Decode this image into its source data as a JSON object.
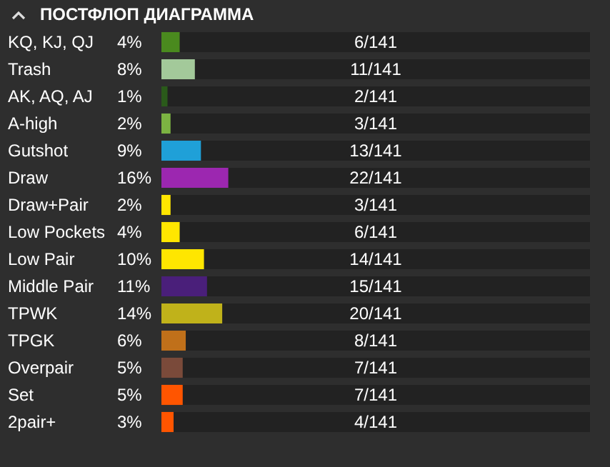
{
  "chart_data": {
    "type": "bar",
    "orientation": "horizontal",
    "title": "ПОСТФЛОП ДИАГРАММА",
    "categories": [
      "KQ, KJ, QJ",
      "Trash",
      "AK, AQ, AJ",
      "A-high",
      "Gutshot",
      "Draw",
      "Draw+Pair",
      "Low Pockets",
      "Low Pair",
      "Middle Pair",
      "TPWK",
      "TPGK",
      "Overpair",
      "Set",
      "2pair+"
    ],
    "values": [
      6,
      11,
      2,
      3,
      13,
      22,
      3,
      6,
      14,
      15,
      20,
      8,
      7,
      7,
      4
    ],
    "value_labels": [
      "6/141",
      "11/141",
      "2/141",
      "3/141",
      "13/141",
      "22/141",
      "3/141",
      "6/141",
      "14/141",
      "15/141",
      "20/141",
      "8/141",
      "7/141",
      "7/141",
      "4/141"
    ],
    "colors": [
      "#4a8a1e",
      "#a3c99a",
      "#2a5a1a",
      "#7cb342",
      "#1fa0d8",
      "#9c27b0",
      "#ffe600",
      "#ffe600",
      "#ffe600",
      "#4a1f7a",
      "#c0b21a",
      "#c0701a",
      "#7a4a3a",
      "#ff5500",
      "#ff5500"
    ],
    "xlim": [
      0,
      141
    ],
    "tick_labels": "y",
    "annotations": [
      "4%",
      "8%",
      "1%",
      "2%",
      "9%",
      "16%",
      "2%",
      "4%",
      "10%",
      "11%",
      "14%",
      "6%",
      "5%",
      "5%",
      "3%"
    ]
  }
}
